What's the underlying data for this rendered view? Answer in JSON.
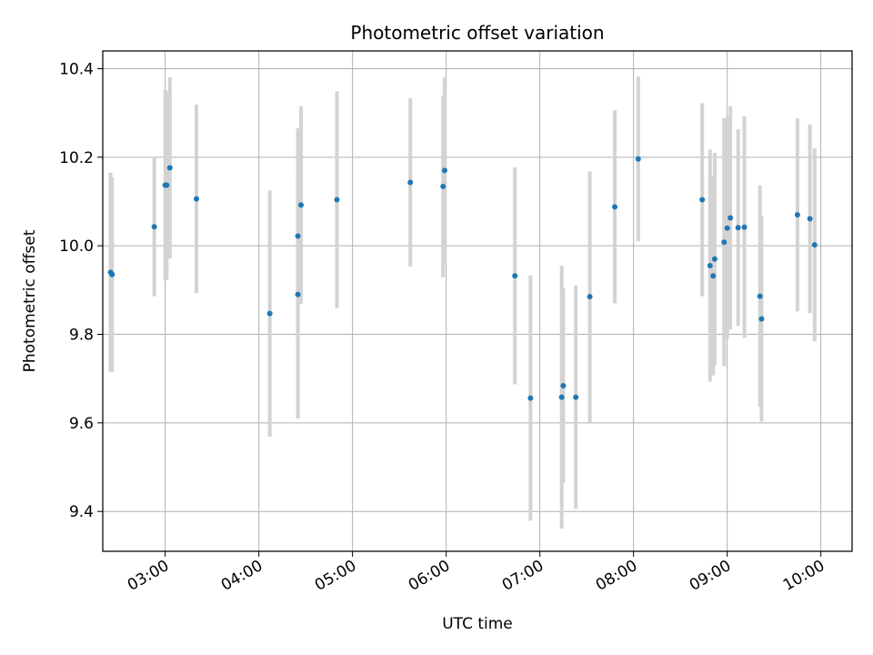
{
  "chart_data": {
    "type": "scatter",
    "title": "Photometric offset variation",
    "xlabel": "UTC time",
    "ylabel": "Photometric offset",
    "xlim": [
      "02:20",
      "10:20"
    ],
    "ylim": [
      9.31,
      10.44
    ],
    "x_ticks": [
      "03:00",
      "04:00",
      "05:00",
      "06:00",
      "07:00",
      "08:00",
      "09:00",
      "10:00"
    ],
    "y_ticks": [
      "9.4",
      "9.6",
      "9.8",
      "10.0",
      "10.2",
      "10.4"
    ],
    "grid": true,
    "error_bar_color": "#d3d3d3",
    "point_color": "#1f77b4",
    "points": [
      {
        "x": "02:25",
        "y": 9.94,
        "err": 0.225
      },
      {
        "x": "02:26",
        "y": 9.935,
        "err": 0.22
      },
      {
        "x": "02:53",
        "y": 10.043,
        "err": 0.157
      },
      {
        "x": "03:00",
        "y": 10.137,
        "err": 0.215
      },
      {
        "x": "03:01",
        "y": 10.137,
        "err": 0.213
      },
      {
        "x": "03:03",
        "y": 10.176,
        "err": 0.205
      },
      {
        "x": "03:20",
        "y": 10.106,
        "err": 0.213
      },
      {
        "x": "04:07",
        "y": 9.847,
        "err": 0.278
      },
      {
        "x": "04:25",
        "y": 9.89,
        "err": 0.28
      },
      {
        "x": "04:25",
        "y": 10.022,
        "err": 0.243
      },
      {
        "x": "04:27",
        "y": 10.092,
        "err": 0.223
      },
      {
        "x": "04:50",
        "y": 10.104,
        "err": 0.245
      },
      {
        "x": "05:37",
        "y": 10.143,
        "err": 0.19
      },
      {
        "x": "05:58",
        "y": 10.134,
        "err": 0.205
      },
      {
        "x": "05:59",
        "y": 10.17,
        "err": 0.21
      },
      {
        "x": "06:44",
        "y": 9.932,
        "err": 0.245
      },
      {
        "x": "06:54",
        "y": 9.656,
        "err": 0.277
      },
      {
        "x": "07:14",
        "y": 9.658,
        "err": 0.297
      },
      {
        "x": "07:15",
        "y": 9.684,
        "err": 0.22
      },
      {
        "x": "07:23",
        "y": 9.658,
        "err": 0.252
      },
      {
        "x": "07:32",
        "y": 9.885,
        "err": 0.283
      },
      {
        "x": "07:48",
        "y": 10.088,
        "err": 0.218
      },
      {
        "x": "08:03",
        "y": 10.196,
        "err": 0.186
      },
      {
        "x": "08:44",
        "y": 10.104,
        "err": 0.218
      },
      {
        "x": "08:49",
        "y": 9.955,
        "err": 0.262
      },
      {
        "x": "08:51",
        "y": 9.932,
        "err": 0.225
      },
      {
        "x": "08:52",
        "y": 9.97,
        "err": 0.24
      },
      {
        "x": "08:58",
        "y": 10.008,
        "err": 0.28
      },
      {
        "x": "09:00",
        "y": 10.04,
        "err": 0.25
      },
      {
        "x": "09:02",
        "y": 10.063,
        "err": 0.252
      },
      {
        "x": "09:07",
        "y": 10.041,
        "err": 0.222
      },
      {
        "x": "09:11",
        "y": 10.042,
        "err": 0.25
      },
      {
        "x": "09:21",
        "y": 9.886,
        "err": 0.25
      },
      {
        "x": "09:22",
        "y": 9.835,
        "err": 0.232
      },
      {
        "x": "09:45",
        "y": 10.07,
        "err": 0.218
      },
      {
        "x": "09:53",
        "y": 10.061,
        "err": 0.213
      },
      {
        "x": "09:56",
        "y": 10.002,
        "err": 0.218
      }
    ]
  }
}
